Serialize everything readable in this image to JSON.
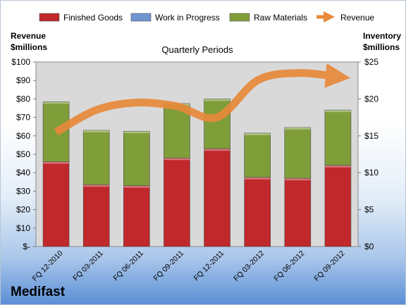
{
  "company": "Medifast",
  "chart_data": {
    "type": "bar",
    "subtitle": "Quarterly Periods",
    "left_axis_title": [
      "Revenue",
      "$millions"
    ],
    "right_axis_title": [
      "Inventory",
      "$millions"
    ],
    "categories": [
      "FQ 12-2010",
      "FQ 03-2011",
      "FQ 06-2011",
      "FQ 09-2011",
      "FQ 12-2011",
      "FQ 03-2012",
      "FQ 06-2012",
      "FQ 09-2012"
    ],
    "left_ticks": [
      "$-",
      "$10",
      "$20",
      "$30",
      "$40",
      "$50",
      "$60",
      "$70",
      "$80",
      "$90",
      "$100"
    ],
    "right_ticks": [
      "$0",
      "$5",
      "$10",
      "$15",
      "$20",
      "$25"
    ],
    "left_ylim": [
      0,
      100
    ],
    "right_ylim": [
      0,
      25
    ],
    "grid": false,
    "legend_position": "top",
    "series": [
      {
        "name": "Finished Goods",
        "kind": "stacked-bar",
        "axis": "left",
        "color": "#c0282c",
        "values": [
          46,
          33.5,
          33,
          48,
          53,
          37.5,
          37,
          44
        ]
      },
      {
        "name": "Work in Progress",
        "kind": "stacked-bar",
        "axis": "left",
        "color": "#6f94d2",
        "values": [
          0,
          0,
          0,
          0,
          0,
          0,
          0,
          0
        ]
      },
      {
        "name": "Raw Materials",
        "kind": "stacked-bar",
        "axis": "left",
        "color": "#7f9e3a",
        "values": [
          32.5,
          29.5,
          29.5,
          29.5,
          27,
          24,
          27.5,
          30
        ]
      },
      {
        "name": "Revenue",
        "kind": "line",
        "axis": "right",
        "color": "#e8893a",
        "values": [
          15.5,
          18.5,
          19.5,
          19,
          17.5,
          22.5,
          23.5,
          23
        ]
      }
    ]
  }
}
